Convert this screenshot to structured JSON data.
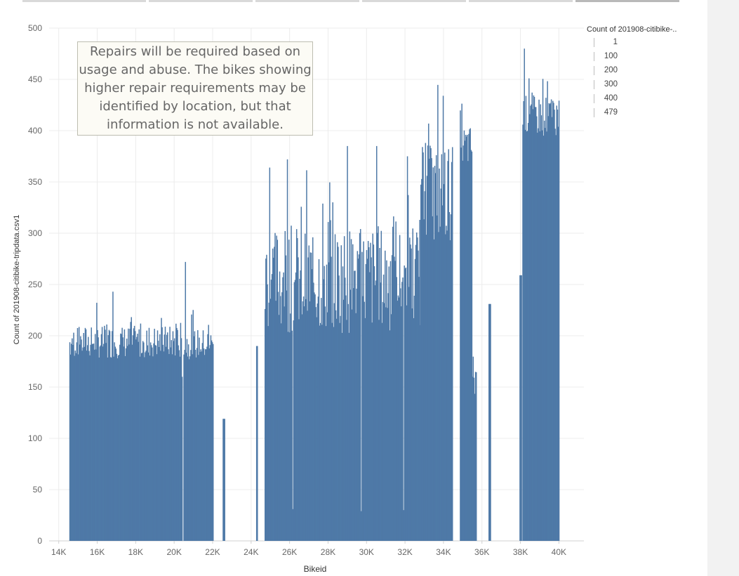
{
  "tabs": [
    {
      "active": false
    },
    {
      "active": false
    },
    {
      "active": false
    },
    {
      "active": false
    },
    {
      "active": false
    },
    {
      "active": true
    }
  ],
  "annotation": "Repairs will be required based on usage and abuse.  The bikes showing higher repair requirements may be identified by location, but that information is not available.",
  "legend": {
    "title": "Count of 201908-citibike-..",
    "items": [
      "1",
      "100",
      "200",
      "300",
      "400",
      "479"
    ]
  },
  "colors": {
    "bar": "#4e79a7",
    "grid": "#ececec",
    "axis_text": "#666666"
  },
  "chart_data": {
    "type": "bar",
    "xlabel": "Bikeid",
    "ylabel": "Count of 201908-citibike-tripdata.csv1",
    "xlim": [
      13500,
      41300
    ],
    "ylim": [
      0,
      500
    ],
    "x_ticks": [
      14000,
      16000,
      18000,
      20000,
      22000,
      24000,
      26000,
      28000,
      30000,
      32000,
      34000,
      36000,
      38000,
      40000
    ],
    "x_tick_labels": [
      "14K",
      "16K",
      "18K",
      "20K",
      "22K",
      "24K",
      "26K",
      "28K",
      "30K",
      "32K",
      "34K",
      "36K",
      "38K",
      "40K"
    ],
    "y_ticks": [
      0,
      50,
      100,
      150,
      200,
      250,
      300,
      350,
      400,
      450,
      500
    ],
    "y_tick_labels": [
      "0",
      "50",
      "100",
      "150",
      "200",
      "250",
      "300",
      "350",
      "400",
      "450",
      "500"
    ],
    "grid": true,
    "segments": [
      {
        "x_start": 14550,
        "x_end": 20400,
        "base": 194,
        "spread": 32,
        "extremes": [
          [
            14570,
            249
          ],
          [
            15210,
            219
          ],
          [
            16780,
            243
          ],
          [
            20130,
            227
          ]
        ]
      },
      {
        "x_start": 20480,
        "x_end": 22000,
        "base": 192,
        "spread": 30,
        "extremes": [
          [
            20550,
            272
          ],
          [
            21500,
            231
          ]
        ]
      },
      {
        "x_start": 22520,
        "x_end": 22600,
        "base": 119,
        "spread": 0,
        "extremes": []
      },
      {
        "x_start": 24260,
        "x_end": 24320,
        "base": 190,
        "spread": 0,
        "extremes": []
      },
      {
        "x_start": 24700,
        "x_end": 32800,
        "base": 255,
        "spread": 105,
        "extremes": [
          [
            24950,
            364
          ],
          [
            25860,
            372
          ],
          [
            28970,
            385
          ],
          [
            30500,
            385
          ],
          [
            32100,
            375
          ]
        ]
      },
      {
        "x_start": 32800,
        "x_end": 34450,
        "base": 340,
        "spread": 95,
        "extremes": [
          [
            33050,
            388
          ],
          [
            33950,
            434
          ]
        ]
      },
      {
        "x_start": 34850,
        "x_end": 35470,
        "base": 385,
        "spread": 40,
        "extremes": [
          [
            35150,
            427
          ]
        ]
      },
      {
        "x_start": 35480,
        "x_end": 35700,
        "base": 160,
        "spread": 50,
        "extremes": [
          [
            35620,
            346
          ]
        ]
      },
      {
        "x_start": 36340,
        "x_end": 36420,
        "base": 231,
        "spread": 0,
        "extremes": []
      },
      {
        "x_start": 37950,
        "x_end": 38050,
        "base": 259,
        "spread": 0,
        "extremes": []
      },
      {
        "x_start": 38100,
        "x_end": 40000,
        "base": 415,
        "spread": 40,
        "extremes": [
          [
            38180,
            480
          ],
          [
            38420,
            451
          ],
          [
            39600,
            445
          ]
        ]
      }
    ],
    "dips": [
      [
        20400,
        160
      ],
      [
        26150,
        31
      ],
      [
        29700,
        29
      ],
      [
        31900,
        30
      ],
      [
        34480,
        2
      ],
      [
        34530,
        21
      ],
      [
        34560,
        0
      ],
      [
        38050,
        20
      ],
      [
        40000,
        260
      ]
    ]
  }
}
